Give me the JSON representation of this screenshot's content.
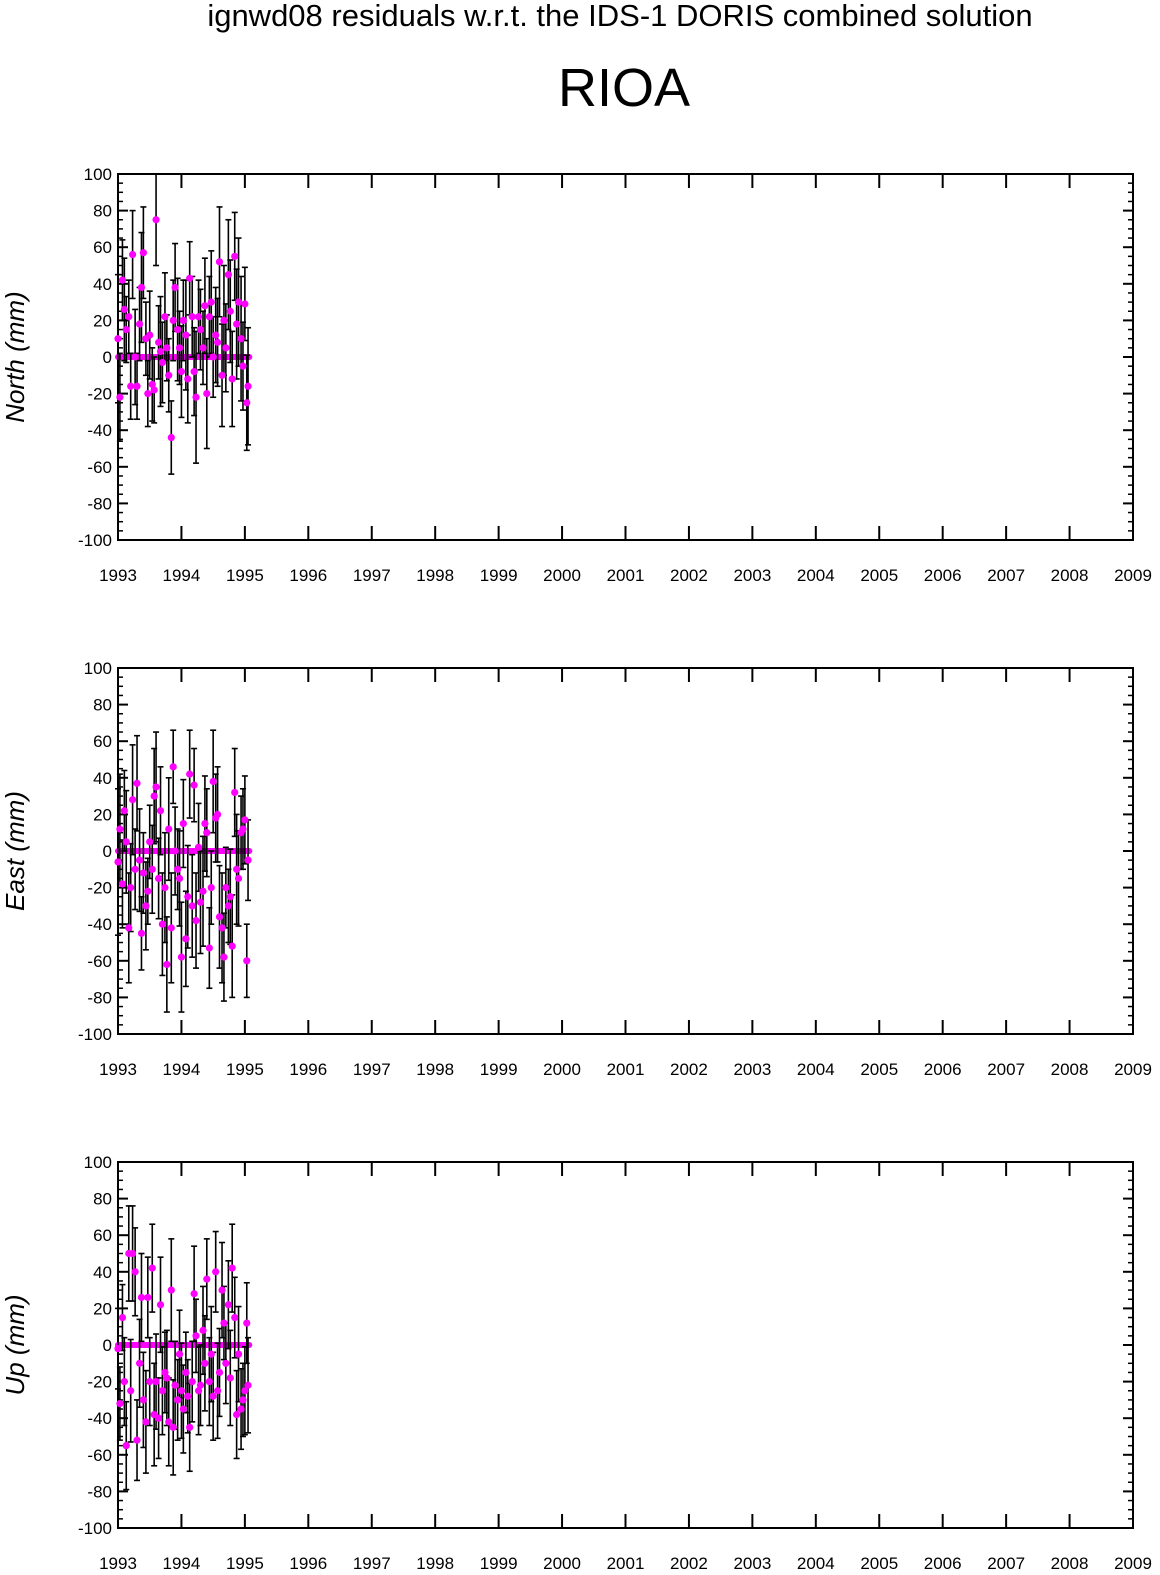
{
  "header": {
    "title": "ignwd08 residuals w.r.t. the IDS-1 DORIS combined solution",
    "station": "RIOA"
  },
  "style": {
    "point_color": "#ff00ff",
    "errorbar_color": "#000000",
    "axis_color": "#000000"
  },
  "chart_data": [
    {
      "type": "scatter",
      "panel": "north",
      "ylabel": "North (mm)",
      "xlim": [
        1993,
        2009
      ],
      "ylim": [
        -100,
        100
      ],
      "x_ticks": [
        1993,
        1994,
        1995,
        1996,
        1997,
        1998,
        1999,
        2000,
        2001,
        2002,
        2003,
        2004,
        2005,
        2006,
        2007,
        2008,
        2009
      ],
      "y_ticks": [
        100,
        80,
        60,
        40,
        20,
        0,
        -20,
        -40,
        -60,
        -80,
        -100
      ],
      "zero_band": [
        1993.0,
        1995.07
      ],
      "series": [
        {
          "x": [
            1993.0,
            1993.03,
            1993.07,
            1993.1,
            1993.13,
            1993.17,
            1993.2,
            1993.23,
            1993.27,
            1993.3,
            1993.34,
            1993.37,
            1993.4,
            1993.44,
            1993.47,
            1993.5,
            1993.54,
            1993.57,
            1993.6,
            1993.64,
            1993.67,
            1993.7,
            1993.74,
            1993.77,
            1993.8,
            1993.84,
            1993.87,
            1993.9,
            1993.94,
            1993.97,
            1994.0,
            1994.03,
            1994.07,
            1994.1,
            1994.13,
            1994.17,
            1994.2,
            1994.23,
            1994.27,
            1994.3,
            1994.34,
            1994.37,
            1994.4,
            1994.44,
            1994.47,
            1994.5,
            1994.54,
            1994.57,
            1994.6,
            1994.64,
            1994.67,
            1994.7,
            1994.74,
            1994.77,
            1994.8,
            1994.84,
            1994.87,
            1994.9,
            1994.94,
            1994.97,
            1995.0,
            1995.03,
            1995.05
          ],
          "y": [
            10,
            -22,
            42,
            26,
            15,
            22,
            -16,
            56,
            0,
            -16,
            18,
            38,
            57,
            10,
            -20,
            12,
            -15,
            -18,
            75,
            8,
            3,
            -3,
            22,
            5,
            -10,
            -44,
            20,
            38,
            15,
            5,
            -8,
            20,
            12,
            -12,
            43,
            22,
            -8,
            -22,
            22,
            15,
            5,
            28,
            -20,
            22,
            30,
            0,
            12,
            8,
            52,
            -10,
            20,
            5,
            45,
            25,
            -12,
            55,
            18,
            30,
            10,
            -5,
            29,
            -25,
            -16
          ],
          "err": [
            35,
            24,
            22,
            28,
            18,
            20,
            18,
            24,
            26,
            18,
            20,
            30,
            25,
            20,
            18,
            24,
            20,
            18,
            25,
            20,
            30,
            22,
            24,
            18,
            20,
            20,
            22,
            24,
            28,
            20,
            25,
            22,
            30,
            24,
            20,
            22,
            24,
            36,
            20,
            22,
            20,
            26,
            30,
            22,
            28,
            22,
            26,
            24,
            30,
            28,
            30,
            24,
            30,
            28,
            26,
            24,
            30,
            35,
            34,
            24,
            20,
            26,
            32
          ]
        }
      ]
    },
    {
      "type": "scatter",
      "panel": "east",
      "ylabel": "East (mm)",
      "xlim": [
        1993,
        2009
      ],
      "ylim": [
        -100,
        100
      ],
      "x_ticks": [
        1993,
        1994,
        1995,
        1996,
        1997,
        1998,
        1999,
        2000,
        2001,
        2002,
        2003,
        2004,
        2005,
        2006,
        2007,
        2008,
        2009
      ],
      "y_ticks": [
        100,
        80,
        60,
        40,
        20,
        0,
        -20,
        -40,
        -60,
        -80,
        -100
      ],
      "zero_band": [
        1993.0,
        1995.07
      ],
      "series": [
        {
          "x": [
            1993.0,
            1993.03,
            1993.07,
            1993.1,
            1993.13,
            1993.17,
            1993.2,
            1993.23,
            1993.27,
            1993.3,
            1993.34,
            1993.37,
            1993.4,
            1993.44,
            1993.47,
            1993.5,
            1993.54,
            1993.57,
            1993.6,
            1993.64,
            1993.67,
            1993.7,
            1993.74,
            1993.77,
            1993.8,
            1993.84,
            1993.87,
            1993.9,
            1993.94,
            1993.97,
            1994.0,
            1994.03,
            1994.07,
            1994.1,
            1994.13,
            1994.17,
            1994.2,
            1994.23,
            1994.27,
            1994.3,
            1994.34,
            1994.37,
            1994.4,
            1994.44,
            1994.47,
            1994.5,
            1994.54,
            1994.57,
            1994.6,
            1994.64,
            1994.67,
            1994.7,
            1994.74,
            1994.77,
            1994.8,
            1994.84,
            1994.87,
            1994.9,
            1994.94,
            1994.97,
            1995.0,
            1995.03,
            1995.05
          ],
          "y": [
            -6,
            12,
            -18,
            22,
            5,
            -42,
            -20,
            28,
            -10,
            37,
            -5,
            -45,
            -12,
            -30,
            -22,
            5,
            -10,
            30,
            35,
            -15,
            22,
            -40,
            -20,
            -62,
            12,
            -42,
            46,
            0,
            -10,
            -15,
            -58,
            15,
            -48,
            -25,
            42,
            -30,
            36,
            -38,
            2,
            -28,
            -22,
            15,
            10,
            -53,
            -20,
            38,
            18,
            20,
            -36,
            -42,
            -58,
            -20,
            -30,
            -25,
            -52,
            32,
            -10,
            -15,
            10,
            12,
            17,
            -60,
            -5
          ],
          "err": [
            40,
            30,
            24,
            22,
            28,
            30,
            24,
            30,
            22,
            26,
            28,
            20,
            22,
            24,
            18,
            20,
            24,
            26,
            30,
            22,
            24,
            28,
            30,
            26,
            28,
            30,
            20,
            24,
            22,
            26,
            30,
            24,
            26,
            28,
            24,
            28,
            20,
            26,
            24,
            28,
            30,
            26,
            24,
            22,
            20,
            28,
            24,
            26,
            28,
            30,
            24,
            22,
            20,
            26,
            28,
            24,
            30,
            26,
            20,
            22,
            24,
            20,
            22
          ]
        }
      ]
    },
    {
      "type": "scatter",
      "panel": "up",
      "ylabel": "Up (mm)",
      "xlim": [
        1993,
        2009
      ],
      "ylim": [
        -100,
        100
      ],
      "x_ticks": [
        1993,
        1994,
        1995,
        1996,
        1997,
        1998,
        1999,
        2000,
        2001,
        2002,
        2003,
        2004,
        2005,
        2006,
        2007,
        2008,
        2009
      ],
      "y_ticks": [
        100,
        80,
        60,
        40,
        20,
        0,
        -20,
        -40,
        -60,
        -80,
        -100
      ],
      "zero_band": [
        1993.0,
        1995.07
      ],
      "series": [
        {
          "x": [
            1993.0,
            1993.03,
            1993.07,
            1993.1,
            1993.13,
            1993.17,
            1993.2,
            1993.23,
            1993.27,
            1993.3,
            1993.34,
            1993.37,
            1993.4,
            1993.44,
            1993.47,
            1993.5,
            1993.54,
            1993.57,
            1993.6,
            1993.64,
            1993.67,
            1993.7,
            1993.74,
            1993.77,
            1993.8,
            1993.84,
            1993.87,
            1993.9,
            1993.94,
            1993.97,
            1994.0,
            1994.03,
            1994.07,
            1994.1,
            1994.13,
            1994.17,
            1994.2,
            1994.23,
            1994.27,
            1994.3,
            1994.34,
            1994.37,
            1994.4,
            1994.44,
            1994.47,
            1994.5,
            1994.54,
            1994.57,
            1994.6,
            1994.64,
            1994.67,
            1994.7,
            1994.74,
            1994.77,
            1994.8,
            1994.84,
            1994.87,
            1994.9,
            1994.94,
            1994.97,
            1995.0,
            1995.03,
            1995.05
          ],
          "y": [
            -2,
            -32,
            15,
            -20,
            -55,
            50,
            -25,
            50,
            40,
            -52,
            -10,
            26,
            -30,
            -42,
            26,
            -20,
            42,
            -38,
            -20,
            -40,
            22,
            -25,
            -15,
            -18,
            -42,
            30,
            -45,
            -22,
            -30,
            -5,
            -25,
            -35,
            -15,
            -28,
            -45,
            -20,
            28,
            5,
            -25,
            -22,
            8,
            -10,
            36,
            -20,
            -5,
            -28,
            40,
            -25,
            -15,
            30,
            12,
            -10,
            22,
            -18,
            42,
            15,
            -38,
            -5,
            -35,
            -30,
            -25,
            12,
            -22
          ],
          "err": [
            22,
            20,
            18,
            24,
            24,
            26,
            28,
            26,
            24,
            22,
            24,
            24,
            26,
            28,
            22,
            24,
            24,
            28,
            26,
            22,
            26,
            24,
            22,
            26,
            24,
            28,
            26,
            24,
            22,
            24,
            26,
            24,
            22,
            20,
            24,
            22,
            26,
            20,
            24,
            22,
            24,
            26,
            22,
            24,
            26,
            24,
            22,
            26,
            24,
            26,
            20,
            22,
            24,
            26,
            24,
            22,
            24,
            26,
            22,
            20,
            24,
            22,
            26
          ]
        }
      ]
    }
  ]
}
